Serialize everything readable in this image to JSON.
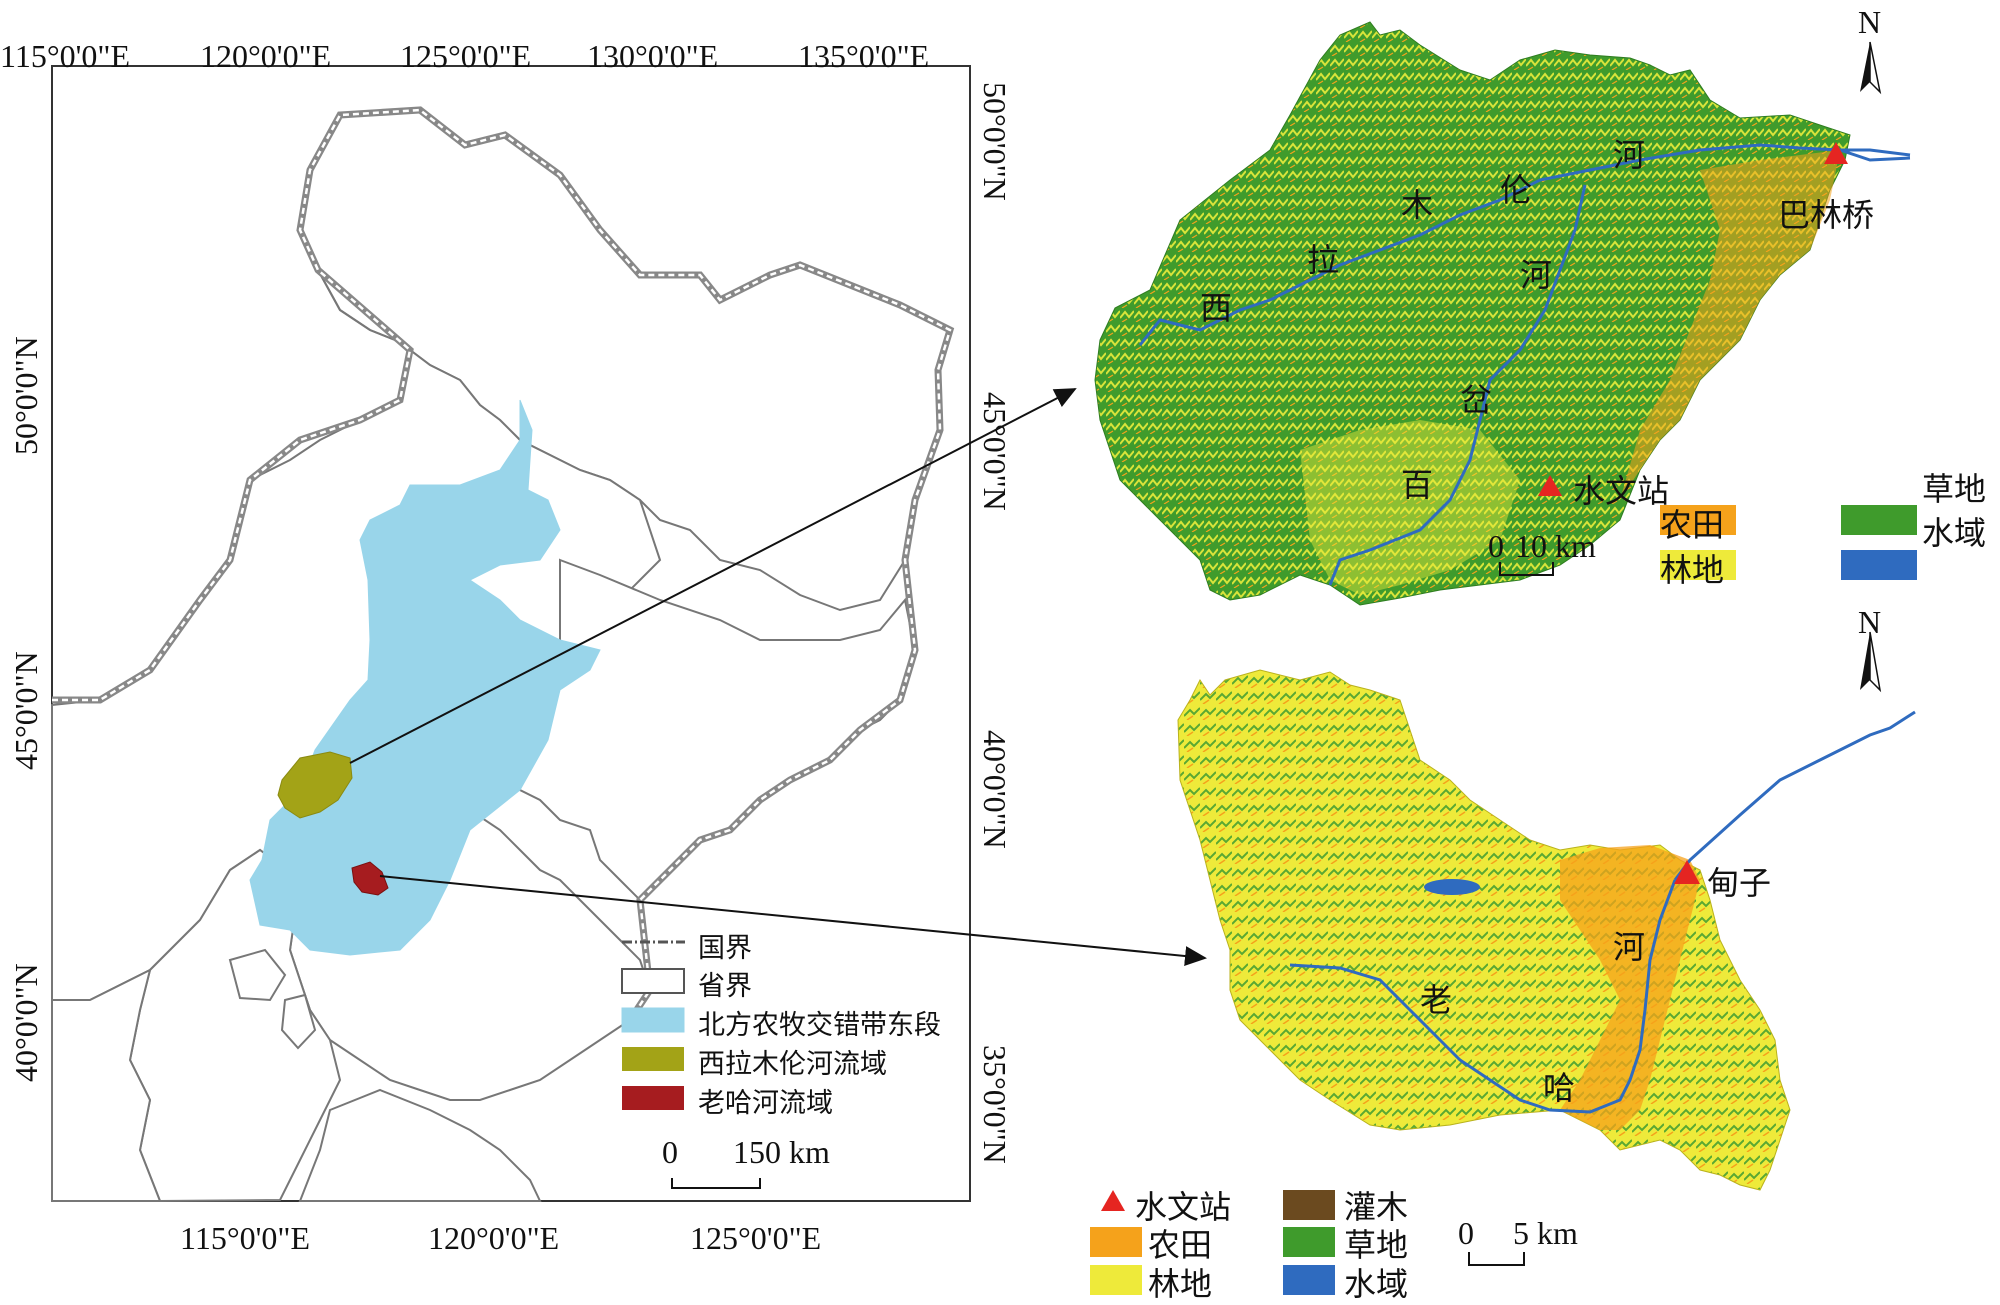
{
  "main_map": {
    "top_lon_labels": [
      "115°0'0\"E",
      "120°0'0\"E",
      "125°0'0\"E",
      "130°0'0\"E",
      "135°0'0\"E"
    ],
    "bottom_lon_labels": [
      "115°0'0\"E",
      "120°0'0\"E",
      "125°0'0\"E"
    ],
    "left_lat_labels": [
      "50°0'0\"N",
      "45°0'0\"N",
      "40°0'0\"N"
    ],
    "right_lat_labels": [
      "50°0'0\"N",
      "45°0'0\"N",
      "40°0'0\"N",
      "35°0'0\"N"
    ],
    "legend": [
      {
        "label": "国界",
        "symbol": "dashed-line",
        "color": "#555555"
      },
      {
        "label": "省界",
        "symbol": "box",
        "color": "#ffffff"
      },
      {
        "label": "北方农牧交错带东段",
        "symbol": "box",
        "color": "#99d5ea"
      },
      {
        "label": "西拉木伦河流域",
        "symbol": "box",
        "color": "#a3a317"
      },
      {
        "label": "老哈河流域",
        "symbol": "box",
        "color": "#a61c1f"
      }
    ],
    "scale": {
      "zero": "0",
      "value": "150 km"
    }
  },
  "inset_xilamulun": {
    "river_chars": [
      "西",
      "拉",
      "木",
      "伦",
      "河"
    ],
    "trib_chars": [
      "河",
      "岔",
      "百"
    ],
    "station": "巴林桥",
    "north": "N",
    "scale": {
      "zero": "0",
      "value": "10 km"
    },
    "legend": [
      {
        "label": "水文站",
        "symbol": "triangle",
        "color": "#e52521"
      },
      {
        "label": "农田",
        "symbol": "box",
        "color": "#f5a21b"
      },
      {
        "label": "林地",
        "symbol": "box",
        "color": "#eeea3a"
      },
      {
        "label": "草地",
        "symbol": "box",
        "color": "#3f9b2c"
      },
      {
        "label": "水域",
        "symbol": "box",
        "color": "#2f6bbf"
      }
    ]
  },
  "inset_laoha": {
    "river_chars": [
      "老",
      "哈",
      "河"
    ],
    "station": "甸子",
    "north": "N",
    "scale": {
      "zero": "0",
      "value": "5 km"
    },
    "legend": [
      {
        "label": "水文站",
        "symbol": "triangle",
        "color": "#e52521"
      },
      {
        "label": "农田",
        "symbol": "box",
        "color": "#f5a21b"
      },
      {
        "label": "林地",
        "symbol": "box",
        "color": "#eeea3a"
      },
      {
        "label": "灌木",
        "symbol": "box",
        "color": "#6b4a1f"
      },
      {
        "label": "草地",
        "symbol": "box",
        "color": "#3f9b2c"
      },
      {
        "label": "水域",
        "symbol": "box",
        "color": "#2f6bbf"
      }
    ]
  }
}
